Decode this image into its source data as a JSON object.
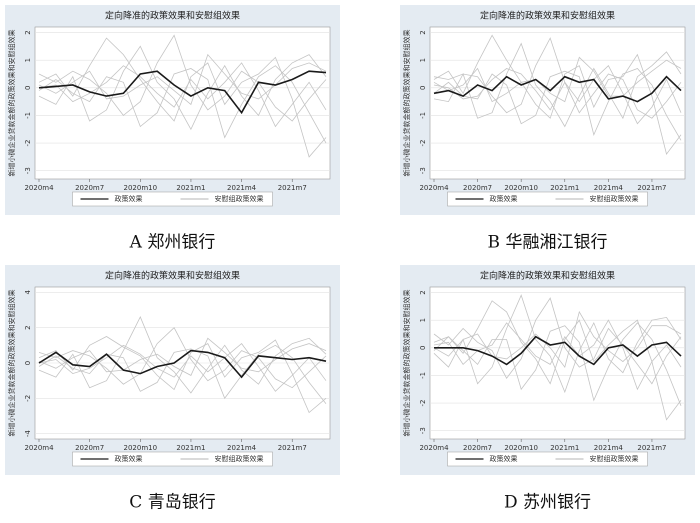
{
  "chart_data": [
    {
      "type": "line",
      "caption": "A  郑州银行",
      "title": "定向降准的政策效果和安慰组效果",
      "ylabel": "新增小微企业贷款金额的政策效果和安慰组效果",
      "categories": [
        "2020m4",
        null,
        null,
        "2020m7",
        null,
        null,
        "2020m10",
        null,
        null,
        "2021m1",
        null,
        null,
        "2021m4",
        null,
        null,
        "2021m7",
        null,
        null
      ],
      "ylim": [
        -3.3,
        2.2
      ],
      "yticks": [
        -3,
        -2,
        -1,
        0,
        1,
        2
      ],
      "grid": true,
      "series": [
        {
          "name": "政策效果",
          "color": "#1a1a1a",
          "values": [
            0,
            0.05,
            0.1,
            -0.15,
            -0.3,
            -0.2,
            0.5,
            0.6,
            0.1,
            -0.3,
            0,
            -0.1,
            -0.9,
            0.2,
            0.1,
            0.3,
            0.6,
            0.55
          ]
        }
      ],
      "placebo": {
        "name": "安慰组政策效果",
        "color": "#c4c4c4",
        "series": [
          [
            0.2,
            0.5,
            -0.3,
            0.8,
            1.8,
            1.2,
            0.3,
            -0.5,
            -1.2,
            0.4,
            0.9,
            -0.6,
            0.2,
            0.5,
            1.1,
            -0.4,
            -2.5,
            -1.8
          ],
          [
            -0.3,
            -0.6,
            0.4,
            -1.2,
            -0.8,
            0.6,
            1.5,
            0.2,
            -0.4,
            -1.5,
            -0.2,
            0.8,
            -0.3,
            -1,
            0.3,
            0.9,
            1.2,
            0.4
          ],
          [
            0.5,
            0.2,
            0.6,
            0.3,
            -0.2,
            -1,
            -0.5,
            0.9,
            1.9,
            0.1,
            -0.8,
            -0.3,
            0.6,
            0.2,
            -0.7,
            -1.2,
            -0.4,
            0.3
          ],
          [
            -0.1,
            0.3,
            -0.2,
            -0.5,
            0.4,
            0.2,
            -1.4,
            -0.9,
            0.5,
            0.7,
            0.3,
            -1.8,
            -0.6,
            0.4,
            0.8,
            0.2,
            -0.9,
            -2
          ],
          [
            0.1,
            -0.2,
            0.2,
            0.6,
            -0.4,
            -0.3,
            0.1,
            0.4,
            -0.1,
            -0.6,
            1.2,
            0.5,
            -0.2,
            -0.4,
            0.1,
            0.7,
            0.9,
            0.6
          ],
          [
            0,
            0.1,
            -0.5,
            -0.2,
            0.2,
            0.8,
            0.4,
            -0.2,
            -0.7,
            0.3,
            -0.4,
            0.2,
            0.9,
            -0.1,
            -1.4,
            -0.6,
            0.2,
            -0.8
          ]
        ]
      }
    },
    {
      "type": "line",
      "caption": "B  华融湘江银行",
      "title": "定向降准的政策效果和安慰组效果",
      "ylabel": "新增小微企业贷款金额的政策效果和安慰组效果",
      "categories": [
        "2020m4",
        null,
        null,
        "2020m7",
        null,
        null,
        "2020m10",
        null,
        null,
        "2021m1",
        null,
        null,
        "2021m4",
        null,
        null,
        "2021m7",
        null,
        null
      ],
      "ylim": [
        -3.3,
        2.2
      ],
      "yticks": [
        -3,
        -2,
        -1,
        0,
        1,
        2
      ],
      "grid": true,
      "series": [
        {
          "name": "政策效果",
          "color": "#1a1a1a",
          "values": [
            -0.2,
            -0.1,
            -0.3,
            0.1,
            -0.1,
            0.4,
            0.1,
            0.3,
            -0.1,
            0.4,
            0.2,
            0.3,
            -0.4,
            -0.3,
            -0.5,
            -0.2,
            0.4,
            -0.1
          ]
        }
      ],
      "placebo": {
        "name": "安慰组政策效果",
        "color": "#c4c4c4",
        "series": [
          [
            0.3,
            0.6,
            -0.2,
            0.9,
            1.9,
            1,
            0.2,
            -0.6,
            -1.1,
            0.5,
            0.8,
            -0.7,
            0.3,
            0.4,
            1.2,
            -0.3,
            -2.4,
            -1.7
          ],
          [
            -0.4,
            -0.5,
            0.5,
            -1.1,
            -0.9,
            0.5,
            1.6,
            0.1,
            -0.5,
            -1.4,
            -0.3,
            0.7,
            -0.2,
            -1.1,
            0.4,
            0.8,
            1.3,
            0.5
          ],
          [
            0.4,
            0.3,
            0.5,
            0.4,
            -0.3,
            -0.9,
            -0.6,
            0.8,
            1.8,
            0.2,
            -0.9,
            -0.2,
            0.5,
            0.3,
            -0.8,
            -1.1,
            -0.5,
            0.2
          ],
          [
            -0.2,
            0.2,
            -0.3,
            -0.4,
            0.5,
            0.1,
            -1.3,
            -1,
            0.4,
            0.6,
            0.4,
            -1.7,
            -0.5,
            0.5,
            0.7,
            0.1,
            -1,
            -1.9
          ],
          [
            0.2,
            -0.1,
            0.1,
            0.7,
            -0.5,
            -0.2,
            0.2,
            0.3,
            -0.2,
            -0.5,
            1.1,
            0.6,
            -0.3,
            -0.3,
            0.2,
            0.6,
            1,
            0.7
          ],
          [
            0.1,
            0,
            -0.4,
            -0.3,
            0.3,
            0.7,
            0.5,
            -0.1,
            -0.8,
            0.2,
            -0.5,
            0.3,
            0.8,
            -0.2,
            -1.3,
            -0.7,
            0.3,
            -0.9
          ]
        ]
      }
    },
    {
      "type": "line",
      "caption": "C  青岛银行",
      "title": "定向降准的政策效果和安慰组效果",
      "ylabel": "新增小微企业贷款金额的政策效果和安慰组效果",
      "categories": [
        "2020m4",
        null,
        null,
        "2020m7",
        null,
        null,
        "2020m10",
        null,
        null,
        "2021m1",
        null,
        null,
        "2021m4",
        null,
        null,
        "2021m7",
        null,
        null
      ],
      "ylim": [
        -4.3,
        4.3
      ],
      "yticks": [
        -4,
        -2,
        0,
        2,
        4
      ],
      "grid": true,
      "series": [
        {
          "name": "政策效果",
          "color": "#1a1a1a",
          "values": [
            0,
            0.6,
            -0.1,
            -0.2,
            0.5,
            -0.4,
            -0.6,
            -0.2,
            0,
            0.7,
            0.6,
            0.3,
            -0.8,
            0.4,
            0.3,
            0.2,
            0.3,
            0.1
          ]
        }
      ],
      "placebo": {
        "name": "安慰组政策效果",
        "color": "#c4c4c4",
        "series": [
          [
            0.3,
            0.7,
            -0.4,
            1,
            1.5,
            0.9,
            0.4,
            -0.7,
            -1.5,
            0.6,
            1.1,
            -0.8,
            0.3,
            0.6,
            1.3,
            -0.6,
            -2.8,
            -2
          ],
          [
            -0.4,
            -0.8,
            0.5,
            -1.4,
            -1,
            0.7,
            2.6,
            0.3,
            -0.5,
            -1.7,
            -0.3,
            1,
            -0.4,
            -1.2,
            0.4,
            1.1,
            1.4,
            0.5
          ],
          [
            0.6,
            0.3,
            0.7,
            0.4,
            -0.3,
            -1.2,
            -0.6,
            1.1,
            2,
            0.2,
            -1,
            -0.4,
            0.7,
            0.3,
            -0.9,
            -1.4,
            -0.5,
            0.4
          ],
          [
            -0.2,
            0.4,
            -0.3,
            -0.6,
            0.5,
            0.3,
            -1.6,
            -1.1,
            0.6,
            0.8,
            0.4,
            -2,
            -0.7,
            0.5,
            1,
            0.3,
            -1.1,
            -2.3
          ],
          [
            0.1,
            -0.3,
            0.3,
            0.7,
            -0.5,
            -0.4,
            0.2,
            0.5,
            -0.2,
            -0.7,
            1.4,
            0.6,
            -0.3,
            -0.5,
            0.2,
            0.8,
            1.1,
            0.7
          ],
          [
            0,
            0.2,
            -0.6,
            -0.3,
            0.3,
            1,
            0.5,
            -0.3,
            -0.8,
            0.4,
            -0.5,
            0.3,
            1.1,
            -0.2,
            -1.6,
            -0.7,
            0.3,
            -1
          ]
        ]
      }
    },
    {
      "type": "line",
      "caption": "D  苏州银行",
      "title": "定向降准的政策效果和安慰组效果",
      "ylabel": "新增小微企业贷款金额的政策效果和安慰组效果",
      "categories": [
        "2020m4",
        null,
        null,
        "2020m7",
        null,
        null,
        "2020m10",
        null,
        null,
        "2021m1",
        null,
        null,
        "2021m4",
        null,
        null,
        "2021m7",
        null,
        null
      ],
      "ylim": [
        -3.3,
        2.2
      ],
      "yticks": [
        -3,
        -2,
        -1,
        0,
        1,
        2
      ],
      "grid": true,
      "series": [
        {
          "name": "政策效果",
          "color": "#1a1a1a",
          "values": [
            0,
            0,
            0,
            -0.1,
            -0.3,
            -0.6,
            -0.2,
            0.4,
            0.1,
            0.2,
            -0.3,
            -0.6,
            0,
            0.1,
            -0.3,
            0.1,
            0.2,
            -0.3
          ]
        }
      ],
      "placebo": {
        "name": "安慰组政策效果",
        "color": "#c4c4c4",
        "series": [
          [
            0.2,
            0.4,
            -0.2,
            0.7,
            1.7,
            1.3,
            0.2,
            -0.4,
            -1.3,
            0.3,
            1,
            -0.5,
            0.1,
            0.6,
            1,
            -0.5,
            -2.6,
            -1.9
          ],
          [
            -0.2,
            -0.7,
            0.3,
            -1.3,
            -0.7,
            0.7,
            1.9,
            0.3,
            -0.3,
            -1.6,
            -0.1,
            0.9,
            -0.4,
            -0.9,
            0.2,
            1,
            1.1,
            0.3
          ],
          [
            0.5,
            0.1,
            0.7,
            0.2,
            -0.1,
            -1.1,
            -0.4,
            1,
            1.8,
            0,
            -0.7,
            -0.4,
            0.7,
            0.1,
            -0.6,
            -1.3,
            -0.3,
            0.4
          ],
          [
            -0.1,
            0.4,
            -0.1,
            -0.6,
            0.3,
            0.3,
            -1.5,
            -0.8,
            0.6,
            0.8,
            0.2,
            -1.9,
            -0.7,
            0.3,
            0.9,
            0.3,
            -0.8,
            -2.1
          ],
          [
            0,
            -0.3,
            0.3,
            0.5,
            -0.3,
            -0.4,
            0,
            0.5,
            0,
            -0.7,
            1.3,
            0.4,
            -0.1,
            -0.5,
            0,
            0.8,
            0.8,
            0.5
          ],
          [
            0.1,
            0.2,
            -0.6,
            -0.1,
            0.1,
            0.9,
            0.3,
            -0.3,
            -0.6,
            0.4,
            -0.3,
            0.1,
            1,
            0,
            -1.5,
            -0.5,
            0.1,
            -0.7
          ]
        ]
      }
    }
  ]
}
